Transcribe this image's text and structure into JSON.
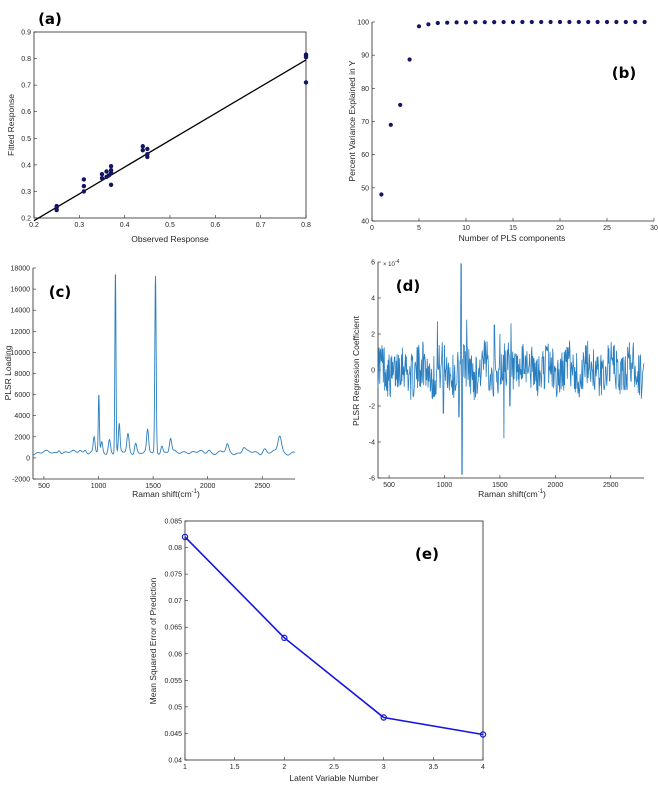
{
  "panels": [
    {
      "id": "a",
      "label": "(a)",
      "chart_data": {
        "type": "scatter",
        "xlabel": "Observed Response",
        "ylabel": "Fitted Response",
        "xlim": [
          0.2,
          0.8
        ],
        "ylim": [
          0.2,
          0.9
        ],
        "xticks": [
          0.2,
          0.3,
          0.4,
          0.5,
          0.6,
          0.7,
          0.8
        ],
        "yticks": [
          0.2,
          0.3,
          0.4,
          0.5,
          0.6,
          0.7,
          0.8,
          0.9
        ],
        "points": [
          [
            0.25,
            0.23
          ],
          [
            0.25,
            0.24
          ],
          [
            0.25,
            0.245
          ],
          [
            0.31,
            0.3
          ],
          [
            0.31,
            0.32
          ],
          [
            0.31,
            0.345
          ],
          [
            0.35,
            0.35
          ],
          [
            0.35,
            0.365
          ],
          [
            0.36,
            0.355
          ],
          [
            0.36,
            0.375
          ],
          [
            0.365,
            0.36
          ],
          [
            0.37,
            0.325
          ],
          [
            0.37,
            0.37
          ],
          [
            0.37,
            0.38
          ],
          [
            0.37,
            0.395
          ],
          [
            0.44,
            0.455
          ],
          [
            0.44,
            0.47
          ],
          [
            0.45,
            0.43
          ],
          [
            0.45,
            0.44
          ],
          [
            0.45,
            0.46
          ],
          [
            0.8,
            0.71
          ],
          [
            0.8,
            0.805
          ],
          [
            0.8,
            0.81
          ],
          [
            0.8,
            0.815
          ]
        ],
        "fit_line": [
          [
            0.2,
            0.19
          ],
          [
            0.8,
            0.795
          ]
        ],
        "color": "#141464"
      }
    },
    {
      "id": "b",
      "label": "(b)",
      "chart_data": {
        "type": "scatter",
        "xlabel": "Number of PLS components",
        "ylabel": "Percent Variance Explained in Y",
        "xlim": [
          0,
          30
        ],
        "ylim": [
          40,
          100
        ],
        "xticks": [
          0,
          5,
          10,
          15,
          20,
          25,
          30
        ],
        "yticks": [
          40,
          50,
          60,
          70,
          80,
          90,
          100
        ],
        "x": [
          1,
          2,
          3,
          4,
          5,
          6,
          7,
          8,
          9,
          10,
          11,
          12,
          13,
          14,
          15,
          16,
          17,
          18,
          19,
          20,
          21,
          22,
          23,
          24,
          25,
          26,
          27,
          28,
          29
        ],
        "y": [
          48,
          69,
          75,
          88.7,
          98.7,
          99.3,
          99.7,
          99.8,
          99.9,
          99.9,
          99.95,
          99.95,
          99.97,
          99.98,
          99.98,
          99.99,
          99.99,
          100,
          100,
          100,
          100,
          100,
          100,
          100,
          100,
          100,
          100,
          100,
          100
        ],
        "color": "#141464"
      }
    },
    {
      "id": "c",
      "label": "(c)",
      "chart_data": {
        "type": "line",
        "xlabel": "Raman shift(cm",
        "xlabel_sup": "-1",
        "xlabel_end": ")",
        "ylabel": "PLSR Loading",
        "xlim": [
          400,
          2800
        ],
        "ylim": [
          -2000,
          18000
        ],
        "xticks": [
          500,
          1000,
          1500,
          2000,
          2500
        ],
        "yticks": [
          -2000,
          0,
          2000,
          4000,
          6000,
          8000,
          10000,
          12000,
          14000,
          16000,
          18000
        ],
        "baseline": 500,
        "peaks": [
          {
            "x": 640,
            "h": 380,
            "w": 12
          },
          {
            "x": 830,
            "h": 300,
            "w": 14
          },
          {
            "x": 880,
            "h": 350,
            "w": 12
          },
          {
            "x": 960,
            "h": 1400,
            "w": 8
          },
          {
            "x": 1003,
            "h": 5400,
            "w": 5
          },
          {
            "x": 1030,
            "h": 900,
            "w": 8
          },
          {
            "x": 1100,
            "h": 1300,
            "w": 10
          },
          {
            "x": 1155,
            "h": 17300,
            "w": 5
          },
          {
            "x": 1190,
            "h": 2600,
            "w": 7
          },
          {
            "x": 1270,
            "h": 1700,
            "w": 10
          },
          {
            "x": 1340,
            "h": 1000,
            "w": 10
          },
          {
            "x": 1450,
            "h": 2000,
            "w": 9
          },
          {
            "x": 1522,
            "h": 16700,
            "w": 6
          },
          {
            "x": 1580,
            "h": 800,
            "w": 10
          },
          {
            "x": 1660,
            "h": 1300,
            "w": 10
          },
          {
            "x": 1800,
            "h": 200,
            "w": 20
          },
          {
            "x": 2010,
            "h": 300,
            "w": 15
          },
          {
            "x": 2180,
            "h": 700,
            "w": 12
          },
          {
            "x": 2330,
            "h": 500,
            "w": 15
          },
          {
            "x": 2520,
            "h": 400,
            "w": 15
          },
          {
            "x": 2660,
            "h": 1600,
            "w": 16
          }
        ],
        "color": "#2a7fc0"
      }
    },
    {
      "id": "d",
      "label": "(d)",
      "chart_data": {
        "type": "line",
        "xlabel": "Raman shift(cm",
        "xlabel_sup": "-1",
        "xlabel_end": ")",
        "ylabel": "PLSR Regression Coefficient",
        "xlim": [
          400,
          2800
        ],
        "ylim": [
          -6,
          6
        ],
        "xticks": [
          500,
          1000,
          1500,
          2000,
          2500
        ],
        "yticks": [
          -6,
          -4,
          -2,
          0,
          2,
          4,
          6
        ],
        "multiplier": "× 10",
        "multiplier_exp": "-4",
        "features": [
          {
            "x": 935,
            "v": 2.7
          },
          {
            "x": 990,
            "v": -2.4
          },
          {
            "x": 1150,
            "v": 5.9
          },
          {
            "x": 1158,
            "v": -5.8
          },
          {
            "x": 1130,
            "v": -2.6
          },
          {
            "x": 1200,
            "v": 2.8
          },
          {
            "x": 1450,
            "v": 2.5
          },
          {
            "x": 1535,
            "v": -3.8
          },
          {
            "x": 1500,
            "v": 2.0
          },
          {
            "x": 1600,
            "v": 2.6
          },
          {
            "x": 1590,
            "v": -2.0
          }
        ],
        "color": "#2a7fc0"
      }
    },
    {
      "id": "e",
      "label": "(e)",
      "chart_data": {
        "type": "line",
        "xlabel": "Latent Variable Number",
        "ylabel": "Mean Squared Error of Prediction",
        "xlim": [
          1,
          4
        ],
        "ylim": [
          0.04,
          0.085
        ],
        "xticks": [
          1,
          1.5,
          2,
          2.5,
          3,
          3.5,
          4
        ],
        "yticks": [
          0.04,
          0.045,
          0.05,
          0.055,
          0.06,
          0.065,
          0.07,
          0.075,
          0.08,
          0.085
        ],
        "x": [
          1,
          2,
          3,
          4
        ],
        "y": [
          0.082,
          0.063,
          0.048,
          0.0448
        ],
        "color": "#1414e0"
      }
    }
  ]
}
